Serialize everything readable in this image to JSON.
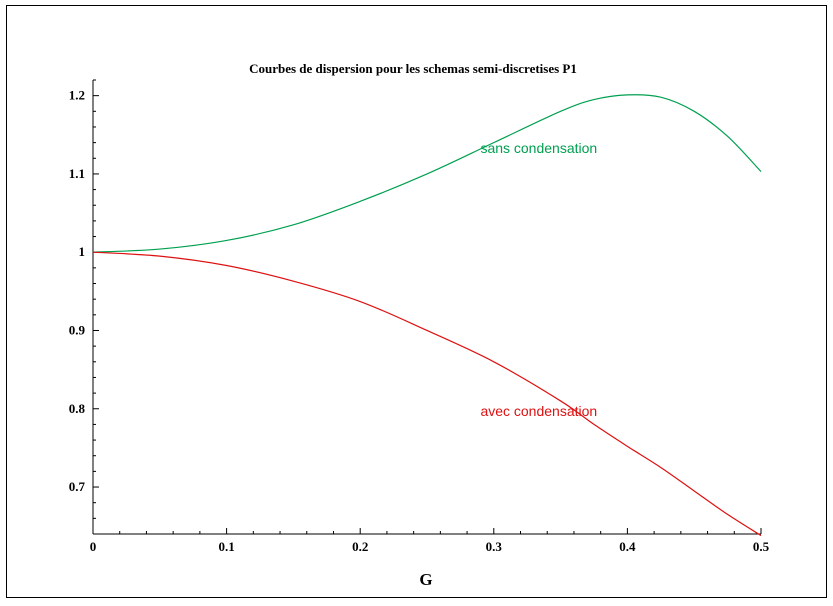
{
  "chart_data": {
    "type": "line",
    "title": "Courbes de dispersion pour les schemas semi-discretises P1",
    "xlabel": "G",
    "ylabel": "",
    "xlim": [
      0,
      0.5
    ],
    "ylim": [
      0.64,
      1.22
    ],
    "x_ticks": [
      "0",
      "0.1",
      "0.2",
      "0.3",
      "0.4",
      "0.5"
    ],
    "y_ticks": [
      "0.7",
      "0.8",
      "0.9",
      "1",
      "1.1",
      "1.2"
    ],
    "grid": false,
    "x": [
      0,
      0.05,
      0.1,
      0.15,
      0.2,
      0.25,
      0.3,
      0.35,
      0.375,
      0.4,
      0.425,
      0.45,
      0.475,
      0.5
    ],
    "series": [
      {
        "color": "#00a050",
        "label": "sans condensation",
        "values": [
          1.0,
          1.004,
          1.015,
          1.035,
          1.065,
          1.1,
          1.14,
          1.18,
          1.195,
          1.201,
          1.198,
          1.18,
          1.148,
          1.103
        ]
      },
      {
        "color": "#dd1111",
        "label": "avec condensation",
        "values": [
          1.0,
          0.995,
          0.983,
          0.963,
          0.937,
          0.9,
          0.86,
          0.81,
          0.78,
          0.752,
          0.725,
          0.695,
          0.665,
          0.638
        ]
      }
    ]
  }
}
